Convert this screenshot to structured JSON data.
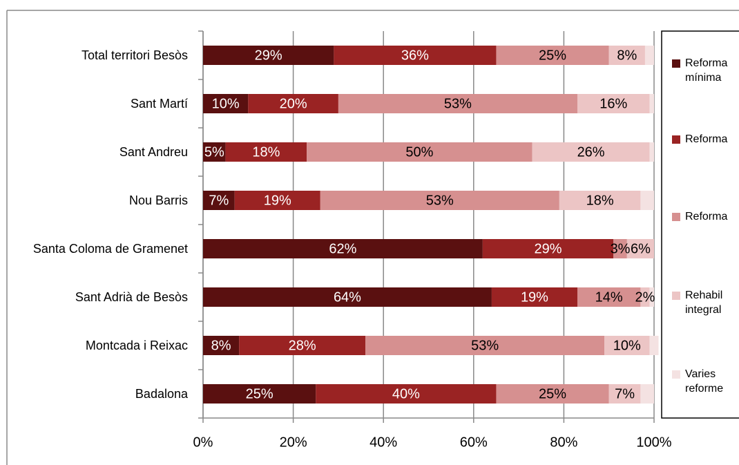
{
  "chart_data": {
    "type": "stacked_barh",
    "categories": [
      "Total territori Besòs",
      "Sant Martí",
      "Sant Andreu",
      "Nou Barris",
      "Santa Coloma de Gramenet",
      "Sant Adrià de Besòs",
      "Montcada i Reixac",
      "Badalona"
    ],
    "series": [
      {
        "name": "Reforma mínima",
        "color": "#5a1010",
        "values": [
          29,
          10,
          5,
          7,
          62,
          64,
          8,
          25
        ],
        "value_labels": [
          "29%",
          "10%",
          "5%",
          "7%",
          "62%",
          "64%",
          "8%",
          "25%"
        ]
      },
      {
        "name": "Reforma",
        "color": "#9a2323",
        "values": [
          36,
          20,
          18,
          19,
          29,
          19,
          28,
          40
        ],
        "value_labels": [
          "36%",
          "20%",
          "18%",
          "19%",
          "29%",
          "19%",
          "28%",
          "40%"
        ]
      },
      {
        "name": "Reforma",
        "color": "#d69090",
        "values": [
          25,
          53,
          50,
          53,
          3,
          14,
          53,
          25
        ],
        "value_labels": [
          "25%",
          "53%",
          "50%",
          "53%",
          "3%",
          "14%",
          "53%",
          "25%"
        ]
      },
      {
        "name": "Rehabil integral",
        "color": "#ecc5c5",
        "values": [
          8,
          16,
          26,
          18,
          6,
          2,
          10,
          7
        ],
        "value_labels": [
          "8%",
          "16%",
          "26%",
          "18%",
          "6%",
          "2%",
          "10%",
          "7%"
        ]
      },
      {
        "name": "Varies reforme",
        "color": "#f4e2e2",
        "values": [
          2,
          1,
          1,
          3,
          0,
          1,
          2,
          3
        ]
      }
    ],
    "xlim": [
      0,
      100
    ],
    "xticks": [
      {
        "value": 0,
        "label": "0%"
      },
      {
        "value": 20,
        "label": "20%"
      },
      {
        "value": 40,
        "label": "40%"
      },
      {
        "value": 60,
        "label": "60%"
      },
      {
        "value": 80,
        "label": "80%"
      },
      {
        "value": 100,
        "label": "100%"
      }
    ],
    "grid": true
  }
}
